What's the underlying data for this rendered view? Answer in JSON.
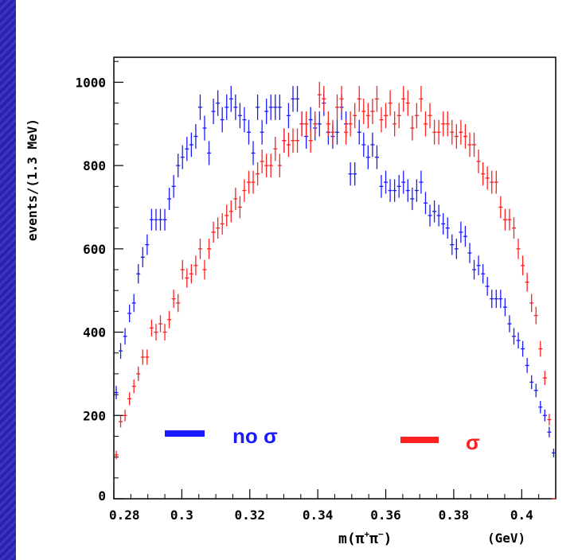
{
  "colors": {
    "frame": "#2a22a8",
    "series_no_sigma": "#1a1aff",
    "series_sigma": "#ff2020"
  },
  "chart_data": {
    "type": "scatter",
    "title": "",
    "xlabel_prefix": "m(π",
    "xlabel_sup1": "+",
    "xlabel_mid": "π",
    "xlabel_sup2": "−",
    "xlabel_suffix": ")",
    "x_unit": "(GeV)",
    "ylabel": "events/(1.3 MeV)",
    "xlim": [
      0.28,
      0.41
    ],
    "ylim": [
      0,
      1060
    ],
    "x_ticks": [
      "0.28",
      "0.3",
      "0.32",
      "0.34",
      "0.36",
      "0.38",
      "0.4"
    ],
    "y_ticks": [
      "0",
      "200",
      "400",
      "600",
      "800",
      "1000"
    ],
    "grid": false,
    "series": [
      {
        "name": "no σ",
        "x": [
          0.2807,
          0.282,
          0.2833,
          0.2846,
          0.2859,
          0.2872,
          0.2885,
          0.2898,
          0.2911,
          0.2924,
          0.2937,
          0.295,
          0.2963,
          0.2976,
          0.2989,
          0.3002,
          0.3015,
          0.3028,
          0.3041,
          0.3054,
          0.3067,
          0.308,
          0.3093,
          0.3106,
          0.3119,
          0.3132,
          0.3145,
          0.3158,
          0.3171,
          0.3184,
          0.3197,
          0.321,
          0.3223,
          0.3236,
          0.3249,
          0.3262,
          0.3275,
          0.3288,
          0.3301,
          0.3314,
          0.3327,
          0.334,
          0.3353,
          0.3366,
          0.3379,
          0.3392,
          0.3405,
          0.3418,
          0.3431,
          0.3444,
          0.3457,
          0.347,
          0.3483,
          0.3496,
          0.3509,
          0.3522,
          0.3535,
          0.3548,
          0.3561,
          0.3574,
          0.3587,
          0.36,
          0.3613,
          0.3626,
          0.3639,
          0.3652,
          0.3665,
          0.3678,
          0.3691,
          0.3704,
          0.3717,
          0.373,
          0.3743,
          0.3756,
          0.3769,
          0.3782,
          0.3795,
          0.3808,
          0.3821,
          0.3834,
          0.3847,
          0.386,
          0.3873,
          0.3886,
          0.3899,
          0.3912,
          0.3925,
          0.3938,
          0.3951,
          0.3964,
          0.3977,
          0.399,
          0.4003,
          0.4016,
          0.4029,
          0.4042,
          0.4055,
          0.4068,
          0.4081,
          0.4094
        ],
        "y": [
          255,
          355,
          390,
          445,
          470,
          540,
          580,
          610,
          670,
          670,
          670,
          670,
          720,
          750,
          800,
          820,
          840,
          850,
          870,
          940,
          890,
          830,
          930,
          950,
          910,
          940,
          960,
          940,
          920,
          910,
          880,
          830,
          940,
          880,
          930,
          940,
          940,
          940,
          860,
          920,
          960,
          960,
          900,
          870,
          910,
          890,
          900,
          950,
          880,
          870,
          880,
          940,
          900,
          780,
          780,
          880,
          850,
          820,
          850,
          820,
          750,
          760,
          740,
          740,
          750,
          760,
          740,
          720,
          740,
          760,
          710,
          680,
          690,
          680,
          660,
          650,
          610,
          600,
          640,
          630,
          590,
          550,
          560,
          540,
          510,
          480,
          480,
          480,
          460,
          420,
          390,
          380,
          360,
          320,
          280,
          260,
          220,
          200,
          160,
          110
        ]
      },
      {
        "name": "σ",
        "x": [
          0.2807,
          0.282,
          0.2833,
          0.2846,
          0.2859,
          0.2872,
          0.2885,
          0.2898,
          0.2911,
          0.2924,
          0.2937,
          0.295,
          0.2963,
          0.2976,
          0.2989,
          0.3002,
          0.3015,
          0.3028,
          0.3041,
          0.3054,
          0.3067,
          0.308,
          0.3093,
          0.3106,
          0.3119,
          0.3132,
          0.3145,
          0.3158,
          0.3171,
          0.3184,
          0.3197,
          0.321,
          0.3223,
          0.3236,
          0.3249,
          0.3262,
          0.3275,
          0.3288,
          0.3301,
          0.3314,
          0.3327,
          0.334,
          0.3353,
          0.3366,
          0.3379,
          0.3392,
          0.3405,
          0.3418,
          0.3431,
          0.3444,
          0.3457,
          0.347,
          0.3483,
          0.3496,
          0.3509,
          0.3522,
          0.3535,
          0.3548,
          0.3561,
          0.3574,
          0.3587,
          0.36,
          0.3613,
          0.3626,
          0.3639,
          0.3652,
          0.3665,
          0.3678,
          0.3691,
          0.3704,
          0.3717,
          0.373,
          0.3743,
          0.3756,
          0.3769,
          0.3782,
          0.3795,
          0.3808,
          0.3821,
          0.3834,
          0.3847,
          0.386,
          0.3873,
          0.3886,
          0.3899,
          0.3912,
          0.3925,
          0.3938,
          0.3951,
          0.3964,
          0.3977,
          0.399,
          0.4003,
          0.4016,
          0.4029,
          0.4042,
          0.4055,
          0.4068,
          0.4081,
          0.4094
        ],
        "y": [
          105,
          185,
          200,
          240,
          270,
          300,
          340,
          340,
          410,
          400,
          420,
          400,
          430,
          480,
          470,
          550,
          530,
          540,
          560,
          600,
          550,
          600,
          640,
          650,
          660,
          680,
          690,
          720,
          700,
          740,
          760,
          760,
          780,
          810,
          800,
          800,
          840,
          800,
          860,
          850,
          860,
          860,
          900,
          900,
          860,
          900,
          970,
          960,
          900,
          880,
          940,
          960,
          880,
          900,
          920,
          960,
          930,
          920,
          930,
          960,
          910,
          920,
          950,
          900,
          920,
          960,
          950,
          890,
          920,
          960,
          900,
          920,
          880,
          880,
          900,
          900,
          880,
          870,
          880,
          870,
          850,
          850,
          810,
          780,
          770,
          760,
          760,
          700,
          670,
          670,
          650,
          600,
          560,
          520,
          470,
          440,
          360,
          290,
          190,
          0
        ]
      }
    ],
    "legend": [
      {
        "label": "no σ",
        "color": "#1a1aff"
      },
      {
        "label": "σ",
        "color": "#ff2020"
      }
    ]
  }
}
